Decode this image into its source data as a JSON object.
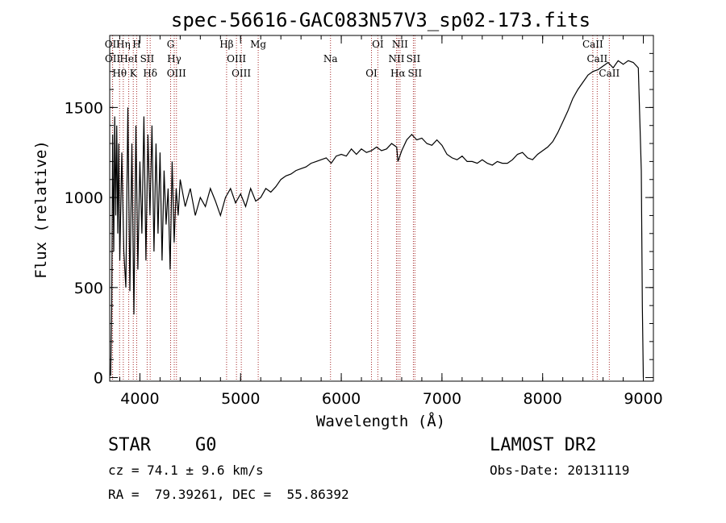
{
  "chart_data": {
    "type": "line",
    "title": "spec-56616-GAC083N57V3_sp02-173.fits",
    "xlabel": "Wavelength (Å)",
    "ylabel": "Flux (relative)",
    "xlim": [
      3700,
      9100
    ],
    "ylim": [
      -20,
      1900
    ],
    "xticks": [
      4000,
      5000,
      6000,
      7000,
      8000,
      9000
    ],
    "yticks": [
      0,
      500,
      1000,
      1500
    ],
    "series": [
      {
        "x": [
          3710,
          3720,
          3730,
          3740,
          3750,
          3760,
          3770,
          3780,
          3790,
          3800,
          3820,
          3840,
          3860,
          3880,
          3900,
          3920,
          3940,
          3960,
          3980,
          4000,
          4020,
          4040,
          4060,
          4080,
          4100,
          4120,
          4140,
          4160,
          4180,
          4200,
          4220,
          4240,
          4260,
          4280,
          4300,
          4320,
          4340,
          4360,
          4380,
          4400,
          4450,
          4500,
          4550,
          4600,
          4650,
          4700,
          4750,
          4800,
          4850,
          4900,
          4950,
          5000,
          5050,
          5100,
          5150,
          5200,
          5250,
          5300,
          5350,
          5400,
          5450,
          5500,
          5550,
          5600,
          5650,
          5700,
          5750,
          5800,
          5850,
          5900,
          5950,
          6000,
          6050,
          6100,
          6150,
          6200,
          6250,
          6300,
          6350,
          6400,
          6450,
          6500,
          6550,
          6563,
          6600,
          6650,
          6700,
          6750,
          6800,
          6850,
          6900,
          6950,
          7000,
          7050,
          7100,
          7150,
          7200,
          7250,
          7300,
          7350,
          7400,
          7450,
          7500,
          7550,
          7600,
          7650,
          7700,
          7750,
          7800,
          7850,
          7900,
          7950,
          8000,
          8050,
          8100,
          8150,
          8200,
          8250,
          8300,
          8350,
          8400,
          8450,
          8500,
          8550,
          8600,
          8650,
          8700,
          8750,
          8800,
          8850,
          8900,
          8950,
          8980,
          8990,
          9000
        ],
        "y": [
          10,
          400,
          1350,
          700,
          1450,
          900,
          1400,
          800,
          1300,
          650,
          1250,
          700,
          500,
          1500,
          480,
          1300,
          350,
          1400,
          600,
          1200,
          800,
          1450,
          650,
          1350,
          900,
          1400,
          700,
          1300,
          800,
          1250,
          650,
          1150,
          850,
          1050,
          600,
          1200,
          750,
          1050,
          900,
          1100,
          950,
          1050,
          900,
          1000,
          950,
          1050,
          980,
          900,
          1000,
          1050,
          970,
          1020,
          950,
          1050,
          980,
          1000,
          1050,
          1030,
          1060,
          1100,
          1120,
          1130,
          1150,
          1160,
          1170,
          1190,
          1200,
          1210,
          1220,
          1190,
          1230,
          1240,
          1230,
          1270,
          1240,
          1270,
          1250,
          1260,
          1280,
          1260,
          1270,
          1300,
          1280,
          1200,
          1260,
          1320,
          1350,
          1320,
          1330,
          1300,
          1290,
          1320,
          1290,
          1240,
          1220,
          1210,
          1230,
          1200,
          1200,
          1190,
          1210,
          1190,
          1180,
          1200,
          1190,
          1190,
          1210,
          1240,
          1250,
          1220,
          1210,
          1240,
          1260,
          1280,
          1310,
          1360,
          1420,
          1480,
          1550,
          1600,
          1640,
          1680,
          1700,
          1710,
          1730,
          1750,
          1720,
          1760,
          1740,
          1760,
          1750,
          1720,
          1150,
          400,
          0
        ]
      }
    ],
    "lines": [
      {
        "name": "OII",
        "w": 3727
      },
      {
        "name": "OII",
        "w": 3729
      },
      {
        "name": "Hθ",
        "w": 3798
      },
      {
        "name": "Hη",
        "w": 3835
      },
      {
        "name": "HeI",
        "w": 3889
      },
      {
        "name": "K",
        "w": 3934
      },
      {
        "name": "H",
        "w": 3968
      },
      {
        "name": "SII",
        "w": 4072
      },
      {
        "name": "Hδ",
        "w": 4102
      },
      {
        "name": "G",
        "w": 4305
      },
      {
        "name": "Hγ",
        "w": 4341
      },
      {
        "name": "OIII",
        "w": 4363
      },
      {
        "name": "Hβ",
        "w": 4861
      },
      {
        "name": "OIII",
        "w": 4959
      },
      {
        "name": "OIII",
        "w": 5007
      },
      {
        "name": "Mg",
        "w": 5175
      },
      {
        "name": "Na",
        "w": 5893
      },
      {
        "name": "OI",
        "w": 6300
      },
      {
        "name": "OI",
        "w": 6363
      },
      {
        "name": "NII",
        "w": 6548
      },
      {
        "name": "Hα",
        "w": 6563
      },
      {
        "name": "NII",
        "w": 6583
      },
      {
        "name": "SII",
        "w": 6716
      },
      {
        "name": "SII",
        "w": 6731
      },
      {
        "name": "CaII",
        "w": 8498
      },
      {
        "name": "CaII",
        "w": 8542
      },
      {
        "name": "CaII",
        "w": 8662
      }
    ]
  },
  "info": {
    "class": "STAR",
    "subclass": "G0",
    "survey": "LAMOST DR2",
    "cz": "cz = 74.1 ± 9.6 km/s",
    "obsdate": "Obs-Date: 20131119",
    "coords": "RA =  79.39261, DEC =  55.86392"
  }
}
